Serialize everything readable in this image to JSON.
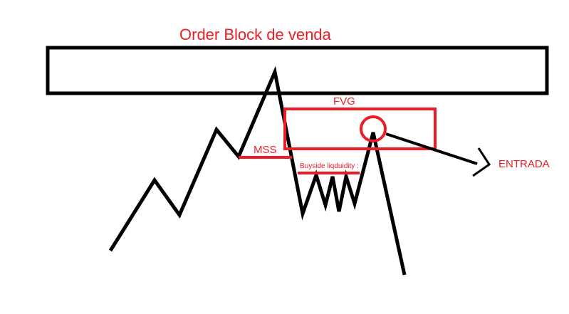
{
  "diagram": {
    "title": "Order Block de venda",
    "fvg_label": "FVG",
    "mss_label": "MSS",
    "buyside_label": "Buyside liqduidity :",
    "entry_label": "ENTRADA"
  },
  "colors": {
    "price_line": "#000000",
    "annotation": "#ee1c24"
  },
  "icons": {
    "entry_marker": "chevron-right-icon",
    "entry_point": "circle-icon"
  }
}
